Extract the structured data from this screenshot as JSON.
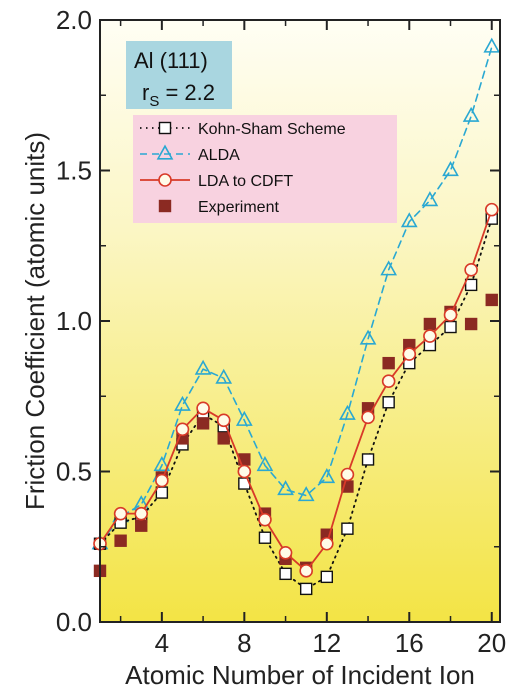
{
  "chart_data": {
    "type": "line",
    "title": "",
    "xlabel": "Atomic Number of  Incident  Ion",
    "ylabel": "Friction Coefficient (atomic units)",
    "xlim": [
      1,
      20.4
    ],
    "ylim": [
      0,
      2.0
    ],
    "x_ticks": [
      4,
      8,
      12,
      16,
      20
    ],
    "y_ticks": [
      0.0,
      0.5,
      1.0,
      1.5,
      2.0
    ],
    "y_tick_labels": [
      "0.0",
      "0.5",
      "1.0",
      "1.5",
      "2.0"
    ],
    "grid": false,
    "legend_position": "top-left",
    "annotation": {
      "line1": "Al (111)",
      "line2_main": "r",
      "line2_sub": "S",
      "line2_rest": " = 2.2"
    },
    "colors": {
      "background_top": "#fffef4",
      "background_bottom": "#f3e445",
      "legend_bg": "#f8d2e0",
      "annotation_bg": "#a9d6e0",
      "ks": "#111111",
      "alda": "#2aa8d2",
      "cdft": "#d83a28",
      "exp": "#8b2a22"
    },
    "series": [
      {
        "name": "Kohn-Sham Scheme",
        "style": "dotted-line-open-square",
        "x": [
          1,
          2,
          3,
          4,
          5,
          6,
          7,
          8,
          9,
          10,
          11,
          12,
          13,
          14,
          15,
          16,
          17,
          18,
          19,
          20
        ],
        "y": [
          0.26,
          0.33,
          0.35,
          0.43,
          0.59,
          0.69,
          0.65,
          0.46,
          0.28,
          0.16,
          0.11,
          0.15,
          0.31,
          0.54,
          0.73,
          0.86,
          0.92,
          0.98,
          1.12,
          1.34
        ]
      },
      {
        "name": "ALDA",
        "style": "dashed-line-open-triangle",
        "x": [
          1,
          2,
          3,
          4,
          5,
          6,
          7,
          8,
          9,
          10,
          11,
          12,
          13,
          14,
          15,
          16,
          17,
          18,
          19,
          20
        ],
        "y": [
          0.26,
          0.35,
          0.39,
          0.52,
          0.72,
          0.84,
          0.81,
          0.67,
          0.52,
          0.44,
          0.42,
          0.48,
          0.69,
          0.94,
          1.17,
          1.33,
          1.4,
          1.5,
          1.68,
          1.91
        ]
      },
      {
        "name": "LDA to CDFT",
        "style": "solid-line-open-circle",
        "x": [
          1,
          2,
          3,
          4,
          5,
          6,
          7,
          8,
          9,
          10,
          11,
          12,
          13,
          14,
          15,
          16,
          17,
          18,
          19,
          20
        ],
        "y": [
          0.26,
          0.36,
          0.36,
          0.47,
          0.64,
          0.71,
          0.67,
          0.5,
          0.34,
          0.23,
          0.17,
          0.26,
          0.49,
          0.68,
          0.8,
          0.89,
          0.95,
          1.02,
          1.17,
          1.37
        ]
      },
      {
        "name": "Experiment",
        "style": "filled-square",
        "x": [
          1,
          2,
          3,
          4,
          5,
          6,
          7,
          8,
          9,
          10,
          11,
          12,
          13,
          14,
          15,
          16,
          17,
          18,
          19,
          20
        ],
        "y": [
          0.17,
          0.27,
          0.32,
          0.48,
          0.61,
          0.66,
          0.61,
          0.54,
          0.36,
          0.21,
          0.18,
          0.29,
          0.45,
          0.71,
          0.86,
          0.92,
          0.99,
          1.03,
          0.99,
          1.07
        ]
      }
    ]
  }
}
